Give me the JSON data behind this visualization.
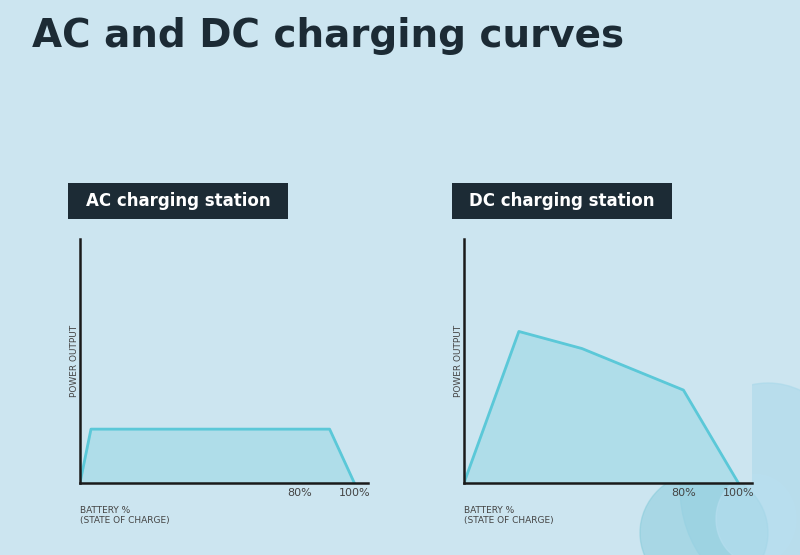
{
  "title": "AC and DC charging curves",
  "title_fontsize": 28,
  "title_fontweight": "bold",
  "background_color": "#cce5f0",
  "line_color": "#5bc8d8",
  "line_width": 2.0,
  "fill_alpha": 0.25,
  "label_bg_color": "#1c2b35",
  "label_text_color": "#ffffff",
  "label_fontsize": 12,
  "axis_color": "#1a1a1a",
  "axis_linewidth": 1.8,
  "tick_fontsize": 8,
  "ylabel_text": "POWER OUTPUT",
  "xlabel_text": "BATTERY %\n(STATE OF CHARGE)",
  "ac_label": "AC charging station",
  "dc_label": "DC charging station",
  "ac_x": [
    0,
    4,
    78,
    91,
    100
  ],
  "ac_y": [
    0,
    22,
    22,
    22,
    0
  ],
  "dc_x": [
    0,
    20,
    43,
    80,
    100
  ],
  "dc_y": [
    0,
    62,
    55,
    38,
    0
  ],
  "x_ticks": [
    80,
    100
  ],
  "x_tick_labels": [
    "80%",
    "100%"
  ],
  "fig_width": 8.0,
  "fig_height": 5.55,
  "dpi": 100,
  "title_color": "#1c2b35",
  "tick_color": "#444444",
  "axis_label_fontsize": 6.5,
  "blob1_color": "#a8d8ea",
  "blob2_color": "#7ec8d8",
  "blob3_color": "#b8dff0"
}
